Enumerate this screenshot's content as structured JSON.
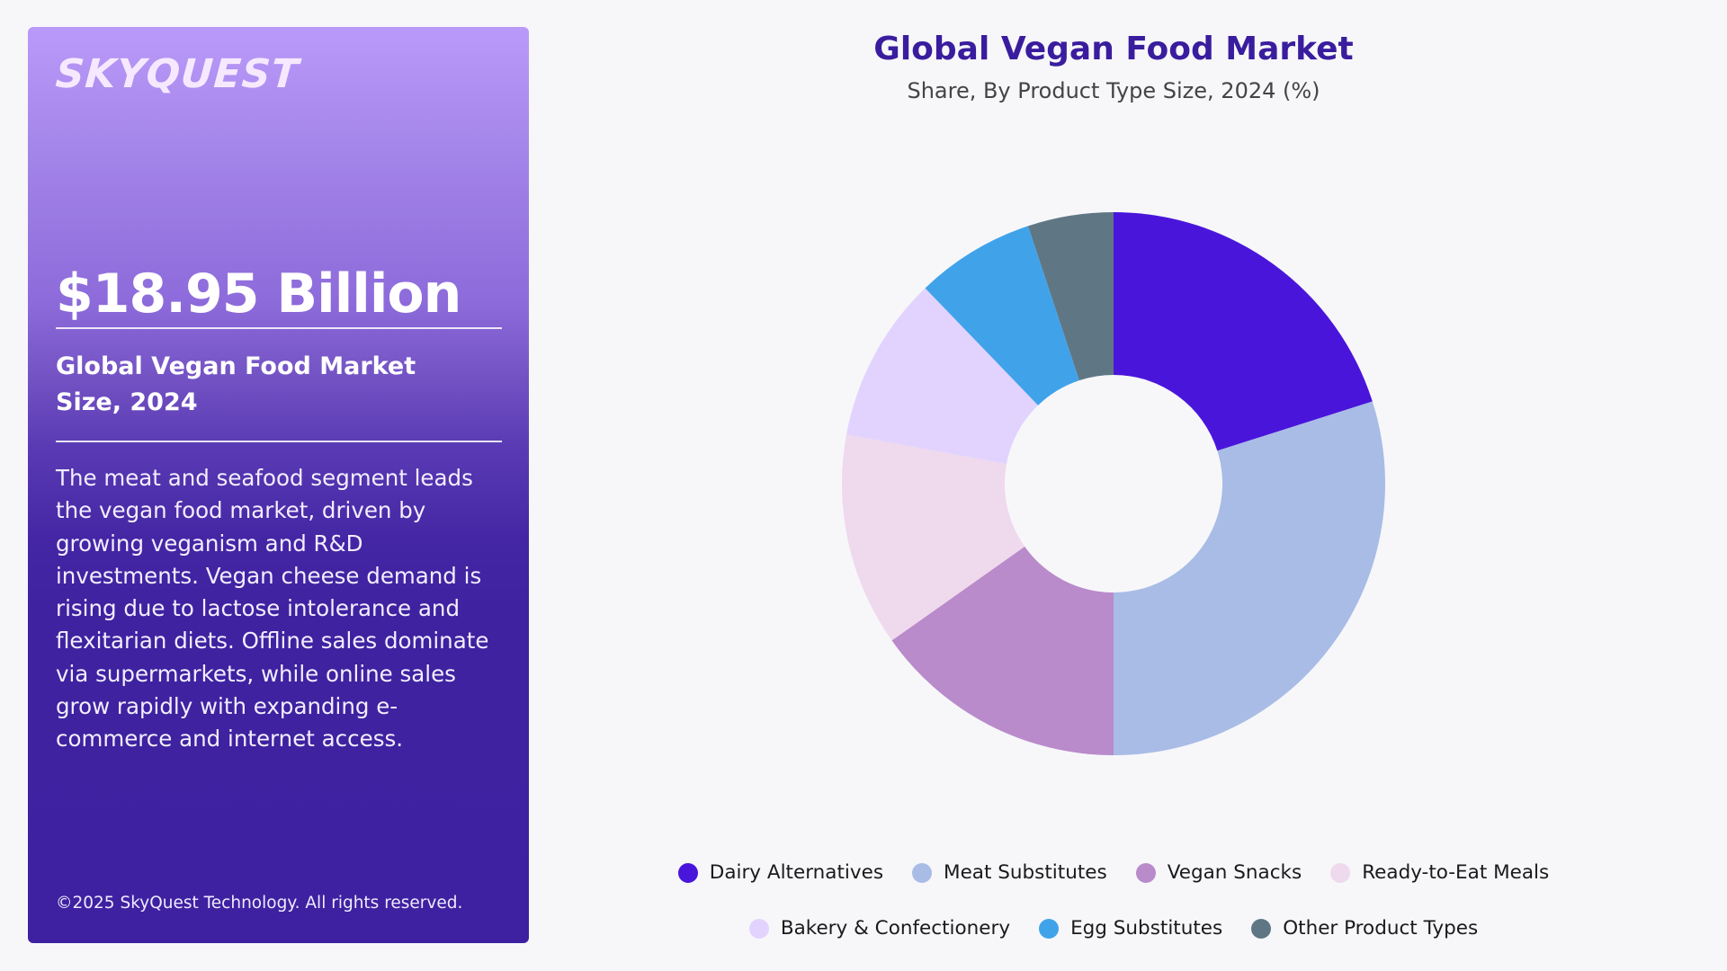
{
  "panel": {
    "logo": "SKYQUEST",
    "market_size": "$18.95 Billion",
    "market_label": "Global Vegan Food Market Size, 2024",
    "description": "The meat and seafood segment leads the vegan food market, driven by growing veganism and R&D investments. Vegan cheese demand is rising due to lactose intolerance and flexitarian diets. Offline sales dominate via supermarkets, while online sales grow rapidly with expanding e-commerce and internet access.",
    "copyright": "©2025 SkyQuest Technology. All rights reserved."
  },
  "chart": {
    "title": "Global Vegan Food Market",
    "subtitle": "Share, By Product Type Size, 2024 (%)"
  },
  "chart_data": {
    "type": "pie",
    "variant": "donut",
    "title": "Global Vegan Food Market",
    "subtitle": "Share, By Product Type Size, 2024 (%)",
    "categories": [
      "Dairy Alternatives",
      "Meat Substitutes",
      "Vegan Snacks",
      "Ready-to-Eat Meals",
      "Bakery & Confectionery",
      "Egg Substitutes",
      "Other Product Types"
    ],
    "values": [
      20.1,
      29.9,
      15.2,
      12.7,
      9.9,
      7.1,
      5.1
    ],
    "colors": [
      "#4A15DB",
      "#A8BCE6",
      "#B98BCB",
      "#EFD9EC",
      "#E2D3FE",
      "#40A3EA",
      "#5F7784"
    ],
    "unit": "%",
    "start_angle_deg": 0,
    "direction": "clockwise",
    "legend_position": "bottom",
    "data_labels": false
  },
  "legend": {
    "rows": [
      [
        {
          "label": "Dairy Alternatives",
          "color": "#4A15DB"
        },
        {
          "label": "Meat Substitutes",
          "color": "#A8BCE6"
        },
        {
          "label": "Vegan Snacks",
          "color": "#B98BCB"
        },
        {
          "label": "Ready-to-Eat Meals",
          "color": "#EFD9EC"
        }
      ],
      [
        {
          "label": "Bakery & Confectionery",
          "color": "#E2D3FE"
        },
        {
          "label": "Egg Substitutes",
          "color": "#40A3EA"
        },
        {
          "label": "Other Product Types",
          "color": "#5F7784"
        }
      ]
    ]
  }
}
